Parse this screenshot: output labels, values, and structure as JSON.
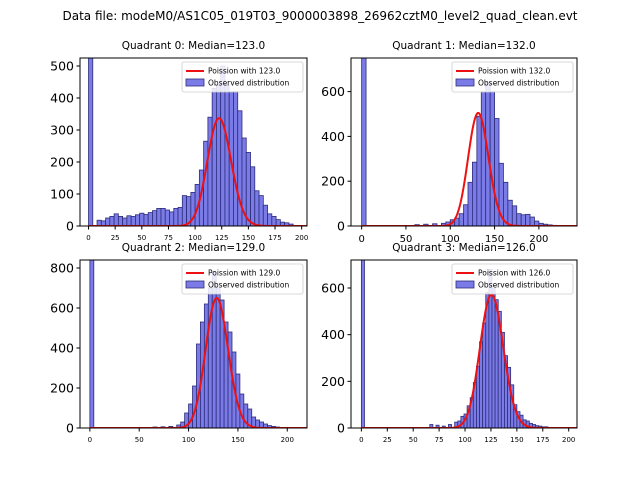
{
  "figure": {
    "suptitle": "Data file: modeM0/AS1C05_019T03_9000003898_26962cztM0_level2_quad_clean.evt"
  },
  "colors": {
    "bar_fill": "#7b7be8",
    "bar_edge": "#2d2d7a",
    "poisson_line": "#ee1111",
    "axis": "#000000"
  },
  "chart_data": [
    {
      "type": "bar",
      "title": "Quadrant 0: Median=123.0",
      "xlim": [
        -8,
        205
      ],
      "ylim": [
        0,
        525
      ],
      "xticks": [
        0,
        25,
        50,
        75,
        100,
        125,
        150,
        175,
        200
      ],
      "xtick_labels": [
        "0",
        "25",
        "50",
        "75",
        "100",
        "125",
        "150",
        "175",
        "200"
      ],
      "yticks": [
        0,
        100,
        200,
        300,
        400,
        500
      ],
      "ytick_labels": [
        "0",
        "100",
        "200",
        "300",
        "400",
        "500"
      ],
      "bin_width": 4,
      "bins": [
        [
          0,
          525
        ],
        [
          8,
          18
        ],
        [
          12,
          16
        ],
        [
          16,
          25
        ],
        [
          20,
          30
        ],
        [
          24,
          38
        ],
        [
          28,
          30
        ],
        [
          32,
          25
        ],
        [
          36,
          32
        ],
        [
          40,
          30
        ],
        [
          44,
          35
        ],
        [
          48,
          40
        ],
        [
          52,
          36
        ],
        [
          56,
          42
        ],
        [
          60,
          48
        ],
        [
          64,
          55
        ],
        [
          68,
          55
        ],
        [
          72,
          50
        ],
        [
          76,
          44
        ],
        [
          80,
          55
        ],
        [
          84,
          58
        ],
        [
          88,
          95
        ],
        [
          92,
          92
        ],
        [
          96,
          105
        ],
        [
          100,
          130
        ],
        [
          104,
          175
        ],
        [
          108,
          265
        ],
        [
          112,
          340
        ],
        [
          116,
          430
        ],
        [
          120,
          440
        ],
        [
          124,
          500
        ],
        [
          128,
          440
        ],
        [
          132,
          420
        ],
        [
          136,
          420
        ],
        [
          140,
          360
        ],
        [
          144,
          275
        ],
        [
          148,
          230
        ],
        [
          152,
          185
        ],
        [
          156,
          110
        ],
        [
          160,
          95
        ],
        [
          164,
          65
        ],
        [
          168,
          38
        ],
        [
          172,
          30
        ],
        [
          176,
          20
        ],
        [
          180,
          12
        ],
        [
          184,
          10
        ],
        [
          188,
          6
        ]
      ],
      "poisson_mean": 123.0,
      "poisson_scale": 9370,
      "legend": {
        "position": "top-right",
        "line_label": "Poission with 123.0",
        "bar_label": "Observed distribution"
      }
    },
    {
      "type": "bar",
      "title": "Quadrant 1: Median=132.0",
      "xlim": [
        -12,
        243
      ],
      "ylim": [
        0,
        750
      ],
      "xticks": [
        0,
        50,
        100,
        150,
        200
      ],
      "xtick_labels": [
        "0",
        "50",
        "100",
        "150",
        "200"
      ],
      "yticks": [
        0,
        200,
        400,
        600
      ],
      "ytick_labels": [
        "0",
        "200",
        "400",
        "600"
      ],
      "bin_width": 5,
      "bins": [
        [
          0,
          750
        ],
        [
          60,
          6
        ],
        [
          70,
          8
        ],
        [
          80,
          10
        ],
        [
          90,
          12
        ],
        [
          95,
          18
        ],
        [
          100,
          28
        ],
        [
          105,
          35
        ],
        [
          110,
          55
        ],
        [
          115,
          95
        ],
        [
          120,
          195
        ],
        [
          125,
          285
        ],
        [
          130,
          490
        ],
        [
          135,
          600
        ],
        [
          140,
          640
        ],
        [
          145,
          600
        ],
        [
          150,
          480
        ],
        [
          155,
          280
        ],
        [
          160,
          195
        ],
        [
          165,
          115
        ],
        [
          170,
          90
        ],
        [
          175,
          55
        ],
        [
          180,
          50
        ],
        [
          185,
          52
        ],
        [
          190,
          40
        ],
        [
          195,
          22
        ],
        [
          200,
          12
        ],
        [
          205,
          8
        ],
        [
          210,
          5
        ],
        [
          215,
          3
        ]
      ],
      "poisson_mean": 132.0,
      "poisson_scale": 14530,
      "legend": {
        "position": "top-right",
        "line_label": "Poission with 132.0",
        "bar_label": "Observed distribution"
      }
    },
    {
      "type": "bar",
      "title": "Quadrant 2: Median=129.0",
      "xlim": [
        -10,
        220
      ],
      "ylim": [
        0,
        840
      ],
      "xticks": [
        0,
        50,
        100,
        150,
        200
      ],
      "xtick_labels": [
        "0",
        "50",
        "100",
        "150",
        "200"
      ],
      "yticks": [
        0,
        200,
        400,
        600,
        800
      ],
      "ytick_labels": [
        "0",
        "200",
        "400",
        "600",
        "800"
      ],
      "bin_width": 4,
      "bins": [
        [
          0,
          840
        ],
        [
          64,
          5
        ],
        [
          72,
          6
        ],
        [
          80,
          8
        ],
        [
          88,
          15
        ],
        [
          92,
          30
        ],
        [
          96,
          75
        ],
        [
          100,
          120
        ],
        [
          104,
          210
        ],
        [
          108,
          420
        ],
        [
          112,
          530
        ],
        [
          116,
          620
        ],
        [
          120,
          700
        ],
        [
          124,
          780
        ],
        [
          128,
          700
        ],
        [
          132,
          640
        ],
        [
          136,
          530
        ],
        [
          140,
          480
        ],
        [
          144,
          380
        ],
        [
          148,
          270
        ],
        [
          152,
          170
        ],
        [
          156,
          120
        ],
        [
          160,
          95
        ],
        [
          164,
          55
        ],
        [
          168,
          40
        ],
        [
          172,
          30
        ],
        [
          176,
          20
        ],
        [
          180,
          12
        ],
        [
          184,
          8
        ],
        [
          188,
          5
        ]
      ],
      "poisson_mean": 129.0,
      "poisson_scale": 18510,
      "legend": {
        "position": "top-right",
        "line_label": "Poission with 129.0",
        "bar_label": "Observed distribution"
      }
    },
    {
      "type": "bar",
      "title": "Quadrant 3: Median=126.0",
      "xlim": [
        -10,
        208
      ],
      "ylim": [
        0,
        720
      ],
      "xticks": [
        0,
        25,
        50,
        75,
        100,
        125,
        150,
        175,
        200
      ],
      "xtick_labels": [
        "0",
        "25",
        "50",
        "75",
        "100",
        "125",
        "150",
        "175",
        "200"
      ],
      "yticks": [
        0,
        200,
        400,
        600
      ],
      "ytick_labels": [
        "0",
        "200",
        "400",
        "600"
      ],
      "bin_width": 3,
      "bins": [
        [
          0,
          720
        ],
        [
          66,
          15
        ],
        [
          72,
          12
        ],
        [
          78,
          8
        ],
        [
          84,
          15
        ],
        [
          90,
          25
        ],
        [
          93,
          30
        ],
        [
          96,
          50
        ],
        [
          99,
          60
        ],
        [
          102,
          95
        ],
        [
          105,
          130
        ],
        [
          108,
          195
        ],
        [
          111,
          265
        ],
        [
          114,
          370
        ],
        [
          117,
          450
        ],
        [
          120,
          580
        ],
        [
          123,
          680
        ],
        [
          126,
          600
        ],
        [
          129,
          550
        ],
        [
          132,
          500
        ],
        [
          135,
          410
        ],
        [
          138,
          310
        ],
        [
          141,
          260
        ],
        [
          144,
          185
        ],
        [
          147,
          100
        ],
        [
          150,
          70
        ],
        [
          153,
          55
        ],
        [
          156,
          35
        ],
        [
          159,
          30
        ],
        [
          162,
          20
        ],
        [
          165,
          15
        ],
        [
          168,
          10
        ],
        [
          171,
          8
        ],
        [
          174,
          5
        ],
        [
          177,
          5
        ]
      ],
      "poisson_mean": 126.0,
      "poisson_scale": 16100,
      "legend": {
        "position": "top-right",
        "line_label": "Poission with 126.0",
        "bar_label": "Observed distribution"
      }
    }
  ]
}
